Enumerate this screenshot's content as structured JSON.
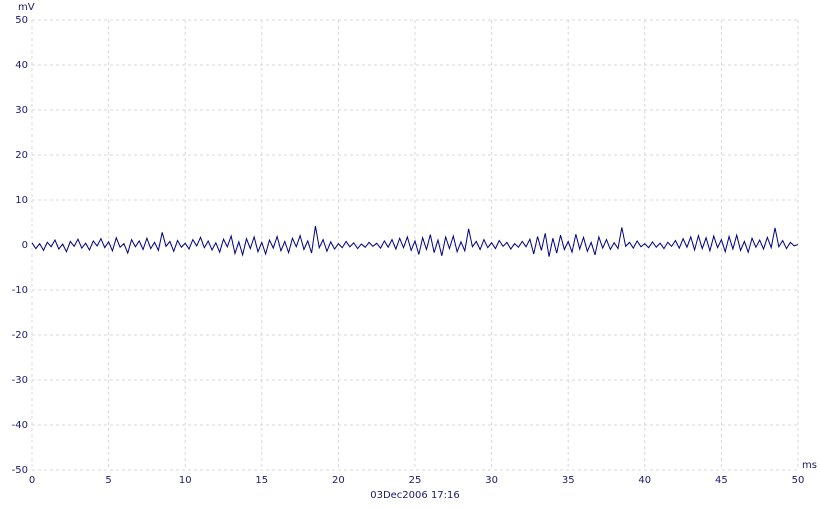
{
  "chart_data": {
    "type": "line",
    "ylabel": "mV",
    "xlabel": "ms",
    "footer": "03Dec2006  17:16",
    "xlim": [
      0,
      50
    ],
    "ylim": [
      -50,
      50
    ],
    "xticks": [
      0,
      5,
      10,
      15,
      20,
      25,
      30,
      35,
      40,
      45,
      50
    ],
    "yticks": [
      -50,
      -40,
      -30,
      -20,
      -10,
      0,
      10,
      20,
      30,
      40,
      50
    ],
    "grid": true,
    "x": [
      0,
      0.25,
      0.5,
      0.75,
      1,
      1.25,
      1.5,
      1.75,
      2,
      2.25,
      2.5,
      2.75,
      3,
      3.25,
      3.5,
      3.75,
      4,
      4.25,
      4.5,
      4.75,
      5,
      5.25,
      5.5,
      5.75,
      6,
      6.25,
      6.5,
      6.75,
      7,
      7.25,
      7.5,
      7.75,
      8,
      8.25,
      8.5,
      8.75,
      9,
      9.25,
      9.5,
      9.75,
      10,
      10.25,
      10.5,
      10.75,
      11,
      11.25,
      11.5,
      11.75,
      12,
      12.25,
      12.5,
      12.75,
      13,
      13.25,
      13.5,
      13.75,
      14,
      14.25,
      14.5,
      14.75,
      15,
      15.25,
      15.5,
      15.75,
      16,
      16.25,
      16.5,
      16.75,
      17,
      17.25,
      17.5,
      17.75,
      18,
      18.25,
      18.5,
      18.75,
      19,
      19.25,
      19.5,
      19.75,
      20,
      20.25,
      20.5,
      20.75,
      21,
      21.25,
      21.5,
      21.75,
      22,
      22.25,
      22.5,
      22.75,
      23,
      23.25,
      23.5,
      23.75,
      24,
      24.25,
      24.5,
      24.75,
      25,
      25.25,
      25.5,
      25.75,
      26,
      26.25,
      26.5,
      26.75,
      27,
      27.25,
      27.5,
      27.75,
      28,
      28.25,
      28.5,
      28.75,
      29,
      29.25,
      29.5,
      29.75,
      30,
      30.25,
      30.5,
      30.75,
      31,
      31.25,
      31.5,
      31.75,
      32,
      32.25,
      32.5,
      32.75,
      33,
      33.25,
      33.5,
      33.75,
      34,
      34.25,
      34.5,
      34.75,
      35,
      35.25,
      35.5,
      35.75,
      36,
      36.25,
      36.5,
      36.75,
      37,
      37.25,
      37.5,
      37.75,
      38,
      38.25,
      38.5,
      38.75,
      39,
      39.25,
      39.5,
      39.75,
      40,
      40.25,
      40.5,
      40.75,
      41,
      41.25,
      41.5,
      41.75,
      42,
      42.25,
      42.5,
      42.75,
      43,
      43.25,
      43.5,
      43.75,
      44,
      44.25,
      44.5,
      44.75,
      45,
      45.25,
      45.5,
      45.75,
      46,
      46.25,
      46.5,
      46.75,
      47,
      47.25,
      47.5,
      47.75,
      48,
      48.25,
      48.5,
      48.75,
      49,
      49.25,
      49.5,
      49.75,
      50
    ],
    "series": [
      {
        "color": "#000080",
        "values": [
          0.5,
          -0.8,
          0.3,
          -1.2,
          0.6,
          -0.4,
          1.1,
          -0.9,
          0.2,
          -1.5,
          0.8,
          -0.3,
          1.3,
          -0.7,
          0.4,
          -1.1,
          0.9,
          -0.2,
          1.4,
          -0.6,
          0.7,
          -1.3,
          1.6,
          -0.5,
          0.3,
          -1.8,
          1.2,
          -0.4,
          0.9,
          -1.0,
          1.5,
          -0.8,
          0.6,
          -1.2,
          2.8,
          -0.3,
          0.8,
          -1.4,
          1.0,
          -0.5,
          0.4,
          -0.9,
          1.2,
          -0.2,
          1.7,
          -0.6,
          0.9,
          -1.1,
          0.5,
          -1.6,
          1.3,
          -0.4,
          2.0,
          -1.9,
          0.7,
          -2.2,
          1.4,
          -0.8,
          1.8,
          -1.5,
          0.6,
          -2.0,
          1.1,
          -0.7,
          1.9,
          -1.3,
          0.8,
          -1.7,
          1.5,
          -0.4,
          2.1,
          -1.0,
          0.9,
          -1.8,
          4.2,
          -0.6,
          1.2,
          -1.4,
          0.7,
          -0.9,
          0.3,
          -0.6,
          0.8,
          -0.4,
          0.5,
          -0.8,
          0.2,
          -0.5,
          0.6,
          -0.3,
          0.4,
          -0.7,
          0.9,
          -0.5,
          1.2,
          -0.9,
          1.5,
          -0.6,
          1.8,
          -1.2,
          0.9,
          -2.1,
          1.6,
          -1.0,
          2.3,
          -1.7,
          1.1,
          -2.4,
          1.8,
          -0.8,
          2.0,
          -1.5,
          0.7,
          -1.3,
          3.6,
          -0.4,
          0.8,
          -1.0,
          1.2,
          -0.6,
          0.5,
          -0.8,
          1.0,
          -0.3,
          0.6,
          -0.9,
          0.3,
          -0.5,
          0.8,
          -0.4,
          1.3,
          -2.0,
          1.9,
          -1.2,
          2.6,
          -2.6,
          1.5,
          -1.8,
          2.2,
          -1.0,
          0.8,
          -1.6,
          2.4,
          -0.9,
          1.7,
          -1.4,
          0.6,
          -2.2,
          1.8,
          -0.7,
          1.2,
          -1.0,
          0.5,
          -0.8,
          3.9,
          -0.3,
          0.6,
          -0.7,
          0.9,
          -0.4,
          0.3,
          -0.6,
          0.7,
          -0.5,
          0.4,
          -0.8,
          0.6,
          -0.3,
          1.0,
          -0.7,
          1.4,
          -0.5,
          1.8,
          -1.1,
          2.1,
          -0.8,
          1.6,
          -1.3,
          2.0,
          -0.6,
          1.2,
          -1.5,
          1.9,
          -0.9,
          2.2,
          -1.2,
          0.8,
          -1.6,
          1.5,
          -0.5,
          1.1,
          -0.9,
          1.7,
          -0.6,
          3.8,
          -0.4,
          1.0,
          -0.8,
          0.6,
          -0.2,
          0.1
        ]
      }
    ]
  }
}
